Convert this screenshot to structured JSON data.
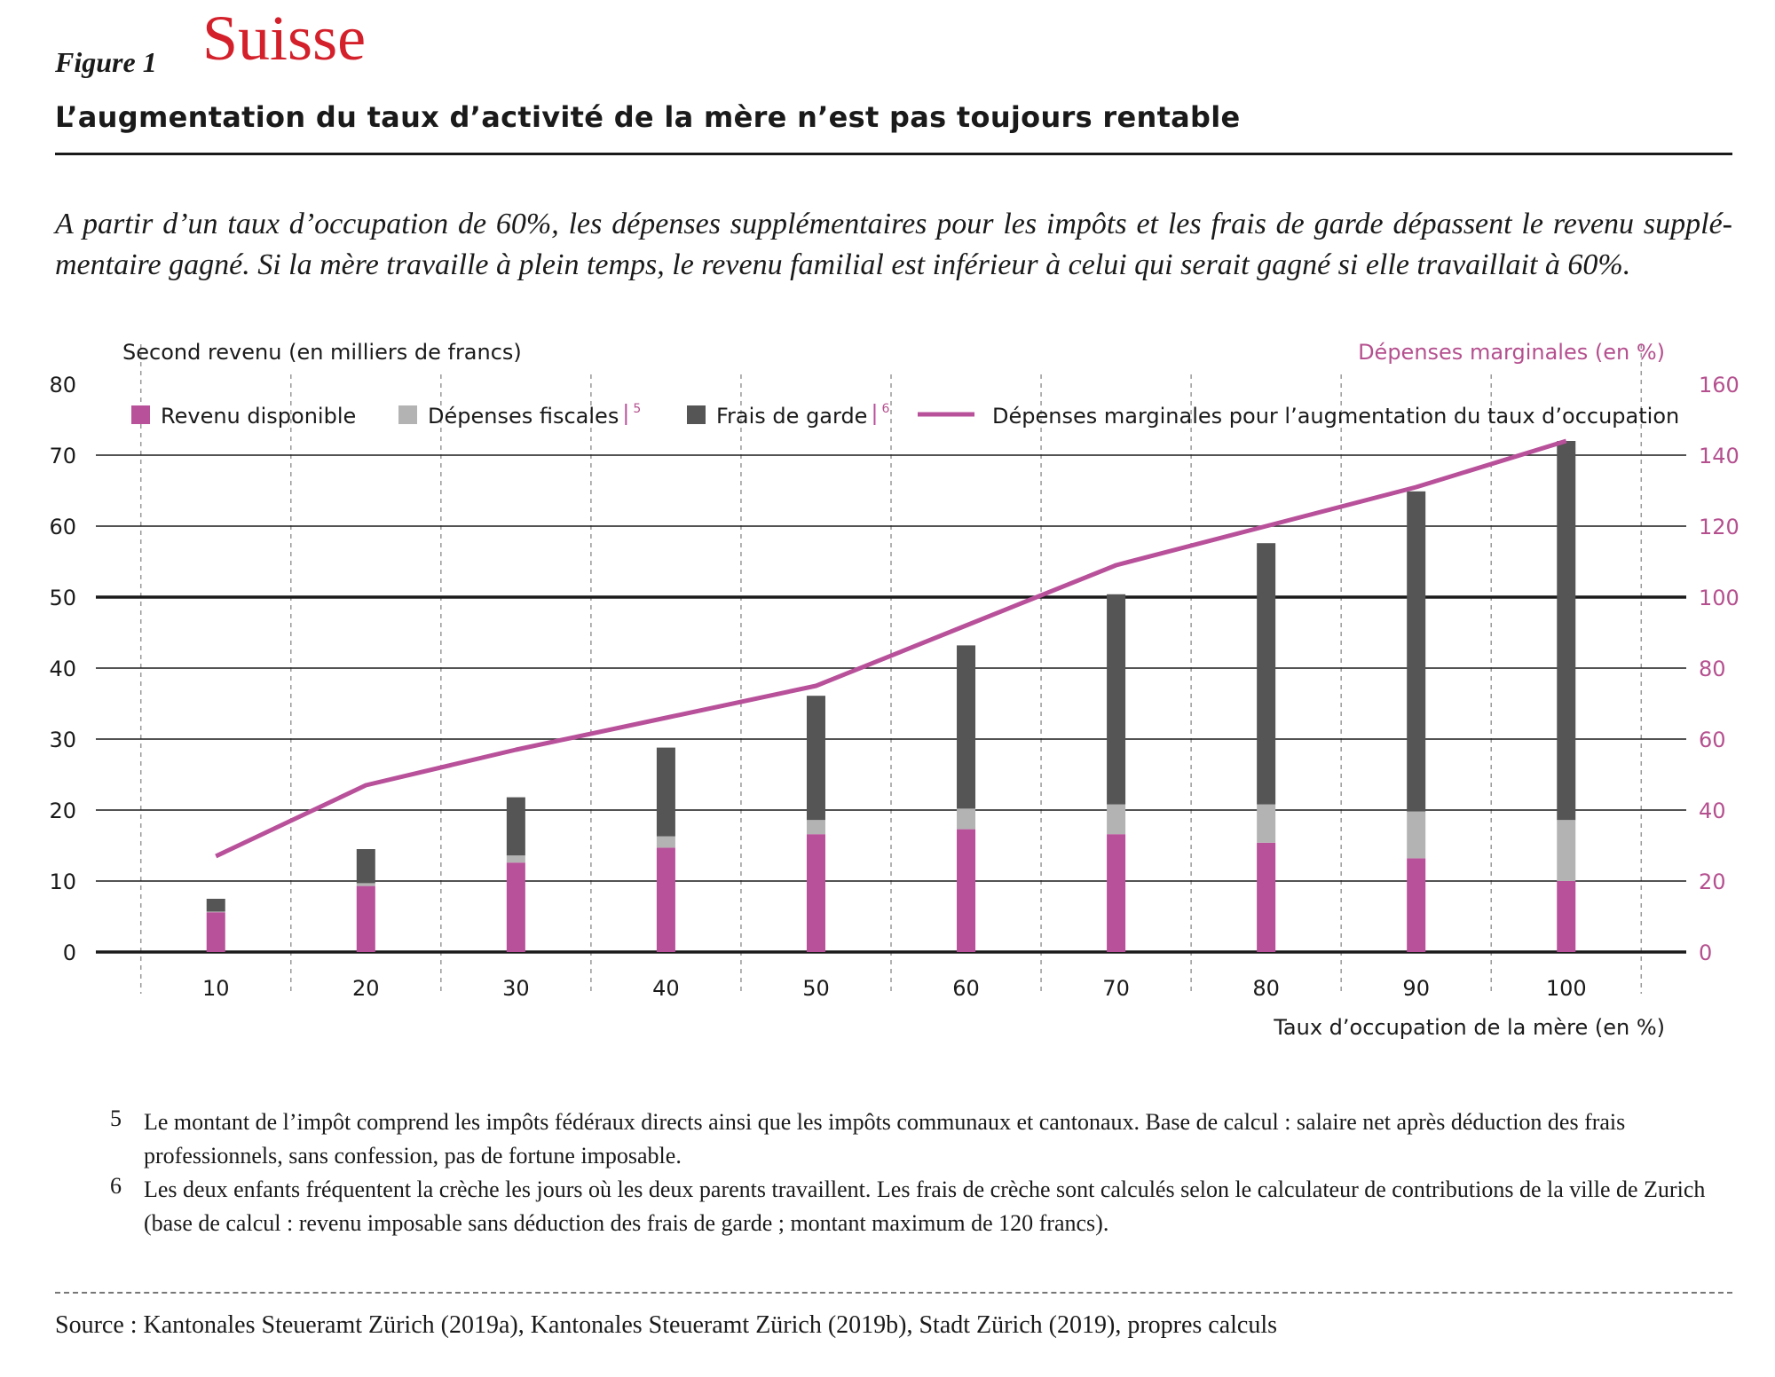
{
  "header": {
    "figure_label": "Figure 1",
    "country": "Suisse",
    "title": "L’augmentation du taux d’activité de la mère n’est pas toujours rentable",
    "subtitle": "A partir d’un taux d’occupation de 60%, les dépenses supplémentaires pour les impôts et les frais de garde dépassent le revenu supplé- mentaire gagné. Si la mère travaille à plein temps, le revenu familial est inférieur à celui qui serait gagné si elle travaillait à 60%."
  },
  "chart_data": {
    "type": "bar",
    "stacked": true,
    "xlabel": "Taux d’occupation de la mère (en %)",
    "ylabel": "Second revenu (en milliers de francs)",
    "y2label": "Dépenses marginales (en %)",
    "categories": [
      "10",
      "20",
      "30",
      "40",
      "50",
      "60",
      "70",
      "80",
      "90",
      "100"
    ],
    "ylim": [
      0,
      80
    ],
    "y2lim": [
      0,
      160
    ],
    "yticks": [
      "0",
      "10",
      "20",
      "30",
      "40",
      "50",
      "60",
      "70",
      "80"
    ],
    "y2ticks": [
      "0",
      "20",
      "40",
      "60",
      "80",
      "100",
      "120",
      "140",
      "160"
    ],
    "reference_line_y": 50,
    "grid": "vertical dashed",
    "legend_position": "top",
    "series": [
      {
        "name": "Revenu disponible",
        "note": "",
        "axis": "left",
        "kind": "bar",
        "color": "#b8509a",
        "values": [
          5.6,
          9.3,
          12.6,
          14.7,
          16.6,
          17.3,
          16.6,
          15.4,
          13.2,
          10.0
        ]
      },
      {
        "name": "Dépenses fiscales",
        "note": "5",
        "axis": "left",
        "kind": "bar",
        "color": "#b3b3b3",
        "values": [
          0.1,
          0.4,
          1.0,
          1.6,
          2.0,
          2.9,
          4.2,
          5.4,
          6.6,
          8.6
        ]
      },
      {
        "name": "Frais de garde",
        "note": "6",
        "axis": "left",
        "kind": "bar",
        "color": "#555555",
        "values": [
          1.8,
          4.8,
          8.2,
          12.5,
          17.5,
          23.0,
          29.6,
          36.8,
          45.1,
          53.4
        ]
      },
      {
        "name": "Dépenses marginales pour l’augmentation du taux d’occupation",
        "note": "",
        "axis": "right",
        "kind": "line",
        "color": "#b8509a",
        "values": [
          27,
          47,
          57,
          66,
          75,
          92,
          109,
          120,
          131,
          144
        ]
      }
    ]
  },
  "footnotes": [
    {
      "num": "5",
      "text": "Le montant de l’impôt comprend les impôts fédéraux directs ainsi que les impôts communaux et cantonaux. Base de calcul : salaire net après déduction des frais professionnels, sans confession, pas de fortune imposable."
    },
    {
      "num": "6",
      "text": "Les deux enfants fréquentent la crèche les jours où les deux parents travaillent. Les frais de crèche sont calculés selon le calculateur de contributions de la ville de Zurich (base de calcul : revenu imposable sans déduction des frais de garde ; montant maximum de 120 francs)."
    }
  ],
  "source": "Source : Kantonales Steueramt Zürich (2019a), Kantonales Steueramt Zürich (2019b), Stadt Zürich (2019), propres calculs"
}
